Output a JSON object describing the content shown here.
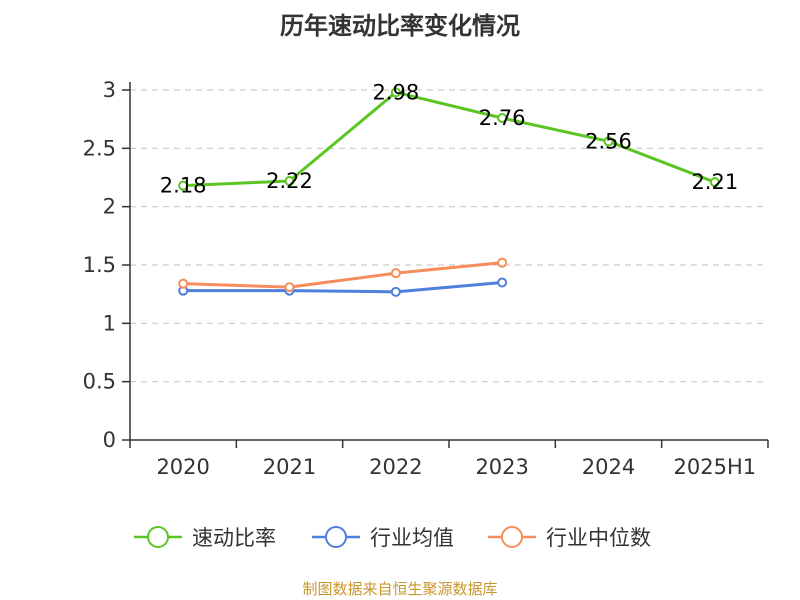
{
  "chart_data": {
    "type": "line",
    "title": "历年速动比率变化情况",
    "categories": [
      "2020",
      "2021",
      "2022",
      "2023",
      "2024",
      "2025H1"
    ],
    "ylim": [
      0,
      3
    ],
    "yticks": [
      "0",
      "0.5",
      "1",
      "1.5",
      "2",
      "2.5",
      "3"
    ],
    "ytick_values": [
      0,
      0.5,
      1,
      1.5,
      2,
      2.5,
      3
    ],
    "grid": true,
    "legend_position": "bottom",
    "series": [
      {
        "name": "速动比率",
        "color": "#5cc524",
        "values": [
          2.18,
          2.22,
          2.98,
          2.76,
          2.56,
          2.21
        ],
        "labels": [
          "2.18",
          "2.22",
          "2.98",
          "2.76",
          "2.56",
          "2.21"
        ]
      },
      {
        "name": "行业均值",
        "color": "#4e7fdc",
        "values": [
          1.28,
          1.28,
          1.27,
          1.35,
          null,
          null
        ]
      },
      {
        "name": "行业中位数",
        "color": "#f68d5a",
        "values": [
          1.34,
          1.31,
          1.43,
          1.52,
          null,
          null
        ]
      }
    ]
  },
  "source": "制图数据来自恒生聚源数据库"
}
